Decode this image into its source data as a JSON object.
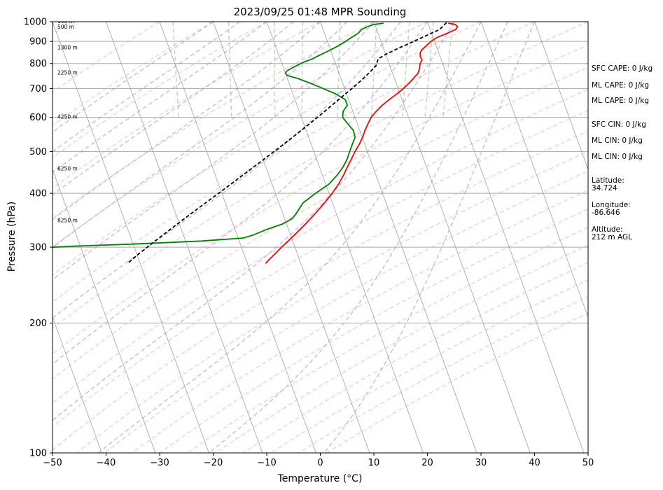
{
  "chart_data": {
    "type": "line",
    "title": "2023/09/25 01:48 MPR Sounding",
    "xlabel": "Temperature (°C)",
    "ylabel": "Pressure (hPa)",
    "xlim": [
      -50,
      50
    ],
    "ylim": [
      1000,
      100
    ],
    "y_scale": "log",
    "skew": true,
    "grid": true,
    "x_ticks": [
      "−50",
      "−40",
      "−30",
      "−20",
      "−10",
      "0",
      "10",
      "20",
      "30",
      "40",
      "50"
    ],
    "y_ticks": [
      "100",
      "200",
      "300",
      "400",
      "500",
      "600",
      "700",
      "800",
      "900",
      "1000"
    ],
    "height_labels": [
      {
        "p": 1000,
        "text": "100 m"
      },
      {
        "p": 970,
        "text": "500 m"
      },
      {
        "p": 870,
        "text": "1300 m"
      },
      {
        "p": 760,
        "text": "2250 m"
      },
      {
        "p": 600,
        "text": "4250 m"
      },
      {
        "p": 455,
        "text": "6250 m"
      },
      {
        "p": 345,
        "text": "8250 m"
      }
    ],
    "series": [
      {
        "kind": "temperature",
        "color": "#ff0000",
        "points": [
          [
            992,
            23.8
          ],
          [
            985,
            25.0
          ],
          [
            975,
            25.3
          ],
          [
            960,
            24.8
          ],
          [
            940,
            22.9
          ],
          [
            920,
            20.8
          ],
          [
            900,
            19.3
          ],
          [
            880,
            18.2
          ],
          [
            860,
            17.0
          ],
          [
            845,
            16.5
          ],
          [
            830,
            16.3
          ],
          [
            815,
            16.4
          ],
          [
            800,
            15.8
          ],
          [
            780,
            15.4
          ],
          [
            760,
            14.8
          ],
          [
            740,
            13.6
          ],
          [
            720,
            12.4
          ],
          [
            700,
            11.0
          ],
          [
            680,
            9.4
          ],
          [
            660,
            7.6
          ],
          [
            640,
            5.9
          ],
          [
            620,
            4.4
          ],
          [
            600,
            3.0
          ],
          [
            580,
            2.0
          ],
          [
            560,
            1.0
          ],
          [
            540,
            0.1
          ],
          [
            520,
            -1.0
          ],
          [
            500,
            -2.3
          ],
          [
            480,
            -3.5
          ],
          [
            460,
            -4.8
          ],
          [
            440,
            -6.1
          ],
          [
            420,
            -7.6
          ],
          [
            400,
            -9.4
          ],
          [
            380,
            -11.5
          ],
          [
            360,
            -13.8
          ],
          [
            340,
            -16.4
          ],
          [
            320,
            -19.3
          ],
          [
            300,
            -22.5
          ],
          [
            290,
            -24.1
          ],
          [
            280,
            -25.8
          ],
          [
            275,
            -26.6
          ]
        ]
      },
      {
        "kind": "dewpoint",
        "color": "#008000",
        "points": [
          [
            992,
            11.7
          ],
          [
            985,
            9.8
          ],
          [
            975,
            8.6
          ],
          [
            960,
            7.2
          ],
          [
            940,
            6.3
          ],
          [
            920,
            4.8
          ],
          [
            900,
            3.4
          ],
          [
            880,
            1.8
          ],
          [
            860,
            0.0
          ],
          [
            840,
            -2.0
          ],
          [
            820,
            -4.0
          ],
          [
            800,
            -6.5
          ],
          [
            785,
            -8.0
          ],
          [
            770,
            -9.5
          ],
          [
            760,
            -10.0
          ],
          [
            750,
            -9.8
          ],
          [
            740,
            -8.2
          ],
          [
            720,
            -6.0
          ],
          [
            700,
            -4.0
          ],
          [
            680,
            -2.0
          ],
          [
            660,
            -0.6
          ],
          [
            640,
            -0.6
          ],
          [
            620,
            -1.8
          ],
          [
            600,
            -2.3
          ],
          [
            580,
            -1.8
          ],
          [
            560,
            -1.2
          ],
          [
            540,
            -1.3
          ],
          [
            520,
            -2.3
          ],
          [
            500,
            -3.3
          ],
          [
            480,
            -4.3
          ],
          [
            460,
            -5.6
          ],
          [
            440,
            -7.3
          ],
          [
            420,
            -9.4
          ],
          [
            400,
            -12.5
          ],
          [
            380,
            -15.5
          ],
          [
            360,
            -17.4
          ],
          [
            350,
            -18.5
          ],
          [
            340,
            -20.6
          ],
          [
            330,
            -24.0
          ],
          [
            320,
            -27.0
          ],
          [
            315,
            -29.0
          ],
          [
            310,
            -37.0
          ],
          [
            305,
            -50.0
          ],
          [
            302,
            -60.0
          ],
          [
            298,
            -70.0
          ],
          [
            293,
            -72.0
          ],
          [
            285,
            -76.0
          ]
        ]
      },
      {
        "kind": "parcel",
        "color": "#000000",
        "style": "dashed",
        "points": [
          [
            995,
            23.5
          ],
          [
            960,
            21.8
          ],
          [
            930,
            19.0
          ],
          [
            900,
            16.1
          ],
          [
            870,
            13.0
          ],
          [
            840,
            10.0
          ],
          [
            820,
            8.3
          ],
          [
            790,
            7.4
          ],
          [
            760,
            5.6
          ],
          [
            730,
            3.6
          ],
          [
            700,
            1.4
          ],
          [
            670,
            -1.0
          ],
          [
            640,
            -3.5
          ],
          [
            610,
            -6.1
          ],
          [
            580,
            -8.9
          ],
          [
            550,
            -11.9
          ],
          [
            520,
            -15.1
          ],
          [
            490,
            -18.6
          ],
          [
            460,
            -22.3
          ],
          [
            430,
            -26.3
          ],
          [
            400,
            -30.6
          ],
          [
            370,
            -35.3
          ],
          [
            340,
            -40.3
          ],
          [
            310,
            -45.7
          ],
          [
            290,
            -49.5
          ],
          [
            275,
            -52.4
          ]
        ]
      }
    ],
    "indices": [
      {
        "label": "SFC CAPE: 0 J/kg"
      },
      {
        "label": "ML CAPE: 0 J/kg"
      },
      {
        "label": "ML CAPE: 0 J/kg"
      },
      {
        "label": "SFC CIN: 0 J/kg"
      },
      {
        "label": "ML CIN: 0 J/kg"
      },
      {
        "label": "ML CIN: 0 J/kg"
      }
    ],
    "location": {
      "latitude_label": "Latitude:",
      "latitude": "34.724",
      "longitude_label": "Longitude:",
      "longitude": "-86.646",
      "altitude_label": "Altitude:",
      "altitude": "212 m AGL"
    },
    "colors": {
      "temperature": "#ff0000",
      "dewpoint": "#008000",
      "parcel": "#000000",
      "dry_adiabat": "#ff9e9e",
      "moist_adiabat": "#8f8fef",
      "mixing_ratio": "#83c283",
      "isotherm": "#a0a0a0"
    }
  }
}
